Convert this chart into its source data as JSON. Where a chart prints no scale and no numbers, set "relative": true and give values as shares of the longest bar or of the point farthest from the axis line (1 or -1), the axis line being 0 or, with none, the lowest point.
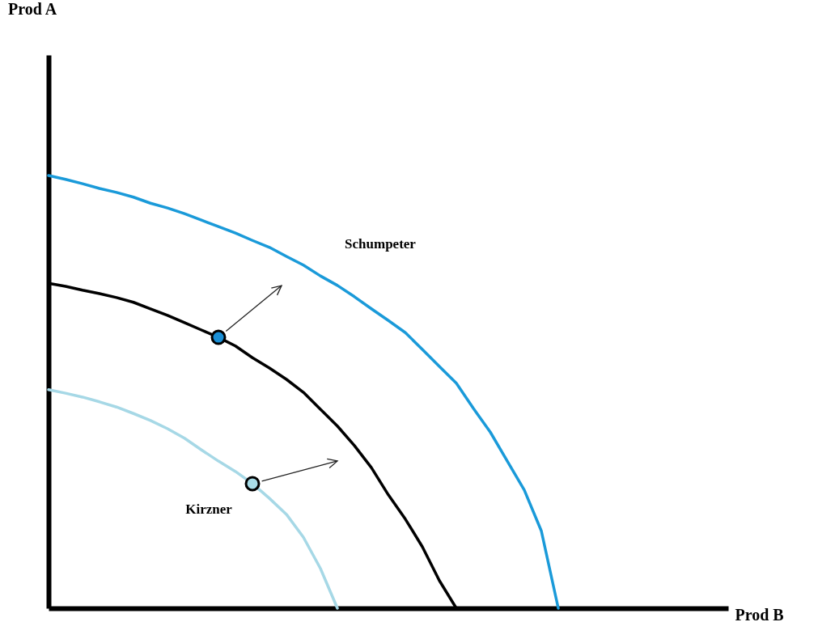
{
  "chart_data": {
    "type": "line",
    "relative": true,
    "xlabel": "Prod B",
    "annotations": [
      "Prod A"
    ],
    "categories": [
      null,
      null,
      null,
      null,
      null,
      null,
      null,
      null,
      null,
      null,
      null,
      null,
      null,
      null,
      null,
      null,
      null,
      null,
      null,
      null,
      null,
      null,
      null,
      null,
      null,
      null,
      null,
      null,
      null,
      null,
      null,
      null,
      null,
      null,
      null,
      null,
      null,
      null,
      null,
      null,
      null
    ],
    "series": [
      {
        "name": "Schumpeter",
        "color": "#1a9ad9",
        "values": [
          1,
          0.991,
          0.981,
          0.97,
          0.961,
          0.95,
          0.936,
          0.925,
          0.912,
          0.897,
          0.882,
          0.867,
          0.85,
          0.834,
          0.813,
          0.793,
          0.768,
          0.746,
          0.72,
          0.692,
          0.665,
          0.637,
          0.598,
          0.559,
          0.52,
          0.462,
          0.407,
          0.34,
          0.273,
          0.179,
          0,
          null,
          null,
          null,
          null,
          null,
          null,
          null,
          null,
          null,
          null
        ]
      },
      {
        "color": "#000000",
        "values": [
          0.751,
          0.744,
          0.735,
          0.727,
          0.718,
          0.707,
          0.692,
          0.677,
          0.66,
          0.643,
          0.626,
          0.606,
          0.579,
          0.555,
          0.529,
          0.499,
          0.46,
          0.421,
          0.376,
          0.325,
          0.262,
          0.206,
          0.142,
          0.064,
          0,
          null,
          null,
          null,
          null,
          null,
          null,
          null,
          null,
          null,
          null,
          null,
          null,
          null,
          null,
          null,
          null
        ]
      },
      {
        "name": "Kirzner",
        "color": "#a6d8e6",
        "values": [
          0.505,
          0.497,
          0.488,
          0.477,
          0.465,
          0.45,
          0.434,
          0.415,
          0.393,
          0.366,
          0.34,
          0.316,
          0.288,
          0.254,
          0.217,
          0.164,
          0.092,
          0,
          null,
          null,
          null,
          null,
          null,
          null,
          null,
          null,
          null,
          null,
          null,
          null,
          null,
          null,
          null,
          null,
          null,
          null,
          null,
          null,
          null,
          null,
          null
        ]
      }
    ]
  }
}
